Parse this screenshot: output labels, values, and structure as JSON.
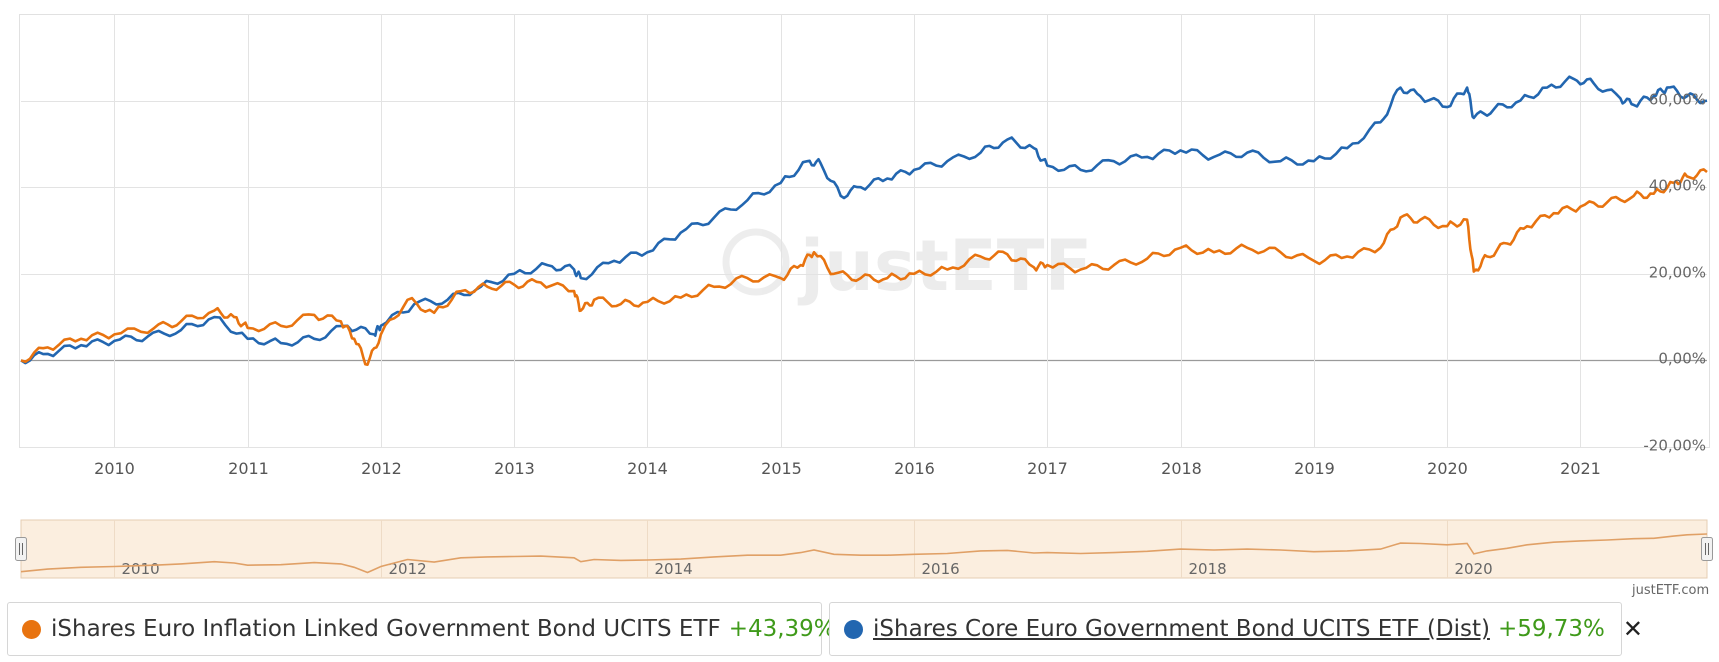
{
  "chart_data": {
    "type": "line",
    "watermark": "justETF",
    "credit": "justETF.com",
    "x_range": [
      2009.3,
      2021.95
    ],
    "ylim": [
      -20,
      80
    ],
    "y_ticks": [
      {
        "value": 60,
        "label": "60,00%"
      },
      {
        "value": 40,
        "label": "40,00%"
      },
      {
        "value": 20,
        "label": "20,00%"
      },
      {
        "value": 0,
        "label": "0,00%"
      },
      {
        "value": -20,
        "label": "-20,00%"
      }
    ],
    "x_ticks": [
      {
        "value": 2010,
        "label": "2010"
      },
      {
        "value": 2011,
        "label": "2011"
      },
      {
        "value": 2012,
        "label": "2012"
      },
      {
        "value": 2013,
        "label": "2013"
      },
      {
        "value": 2014,
        "label": "2014"
      },
      {
        "value": 2015,
        "label": "2015"
      },
      {
        "value": 2016,
        "label": "2016"
      },
      {
        "value": 2017,
        "label": "2017"
      },
      {
        "value": 2018,
        "label": "2018"
      },
      {
        "value": 2019,
        "label": "2019"
      },
      {
        "value": 2020,
        "label": "2020"
      },
      {
        "value": 2021,
        "label": "2021"
      }
    ],
    "navigator_ticks": [
      {
        "value": 2010,
        "label": "2010"
      },
      {
        "value": 2012,
        "label": "2012"
      },
      {
        "value": 2014,
        "label": "2014"
      },
      {
        "value": 2016,
        "label": "2016"
      },
      {
        "value": 2018,
        "label": "2018"
      },
      {
        "value": 2020,
        "label": "2020"
      }
    ],
    "series": [
      {
        "name": "iShares Euro Inflation Linked Government Bond UCITS ETF",
        "performance": "+43,39%",
        "color": "#e8730f",
        "points": [
          [
            2009.3,
            0
          ],
          [
            2009.5,
            3
          ],
          [
            2009.75,
            5
          ],
          [
            2010.0,
            6
          ],
          [
            2010.3,
            7.5
          ],
          [
            2010.5,
            9
          ],
          [
            2010.75,
            11.5
          ],
          [
            2010.9,
            10
          ],
          [
            2011.0,
            7.5
          ],
          [
            2011.25,
            8
          ],
          [
            2011.5,
            10.5
          ],
          [
            2011.7,
            9
          ],
          [
            2011.8,
            5
          ],
          [
            2011.9,
            -1
          ],
          [
            2012.0,
            6
          ],
          [
            2012.2,
            14
          ],
          [
            2012.4,
            11
          ],
          [
            2012.6,
            16
          ],
          [
            2012.8,
            17
          ],
          [
            2013.0,
            17.5
          ],
          [
            2013.2,
            18
          ],
          [
            2013.45,
            16
          ],
          [
            2013.5,
            11.5
          ],
          [
            2013.6,
            14
          ],
          [
            2013.8,
            13
          ],
          [
            2014.0,
            13.5
          ],
          [
            2014.25,
            14.5
          ],
          [
            2014.5,
            17
          ],
          [
            2014.75,
            19
          ],
          [
            2015.0,
            19
          ],
          [
            2015.15,
            22
          ],
          [
            2015.25,
            25
          ],
          [
            2015.4,
            20
          ],
          [
            2015.6,
            19
          ],
          [
            2015.8,
            19
          ],
          [
            2016.0,
            20
          ],
          [
            2016.25,
            21
          ],
          [
            2016.5,
            24
          ],
          [
            2016.7,
            24.5
          ],
          [
            2016.9,
            21.5
          ],
          [
            2017.0,
            22
          ],
          [
            2017.25,
            21
          ],
          [
            2017.5,
            22
          ],
          [
            2017.75,
            23.5
          ],
          [
            2018.0,
            26
          ],
          [
            2018.25,
            25
          ],
          [
            2018.5,
            26
          ],
          [
            2018.75,
            25
          ],
          [
            2019.0,
            23
          ],
          [
            2019.25,
            24
          ],
          [
            2019.5,
            26
          ],
          [
            2019.65,
            33
          ],
          [
            2019.8,
            32.5
          ],
          [
            2020.0,
            31
          ],
          [
            2020.15,
            32.5
          ],
          [
            2020.2,
            20.5
          ],
          [
            2020.3,
            24
          ],
          [
            2020.45,
            27
          ],
          [
            2020.6,
            31
          ],
          [
            2020.8,
            34
          ],
          [
            2021.0,
            35.5
          ],
          [
            2021.2,
            36.5
          ],
          [
            2021.4,
            38
          ],
          [
            2021.55,
            38.5
          ],
          [
            2021.7,
            41
          ],
          [
            2021.8,
            42.5
          ],
          [
            2021.95,
            43.5
          ]
        ]
      },
      {
        "name": "iShares Core Euro Government Bond UCITS ETF (Dist)",
        "performance": "+59,73%",
        "color": "#2266b0",
        "points": [
          [
            2009.3,
            0
          ],
          [
            2009.5,
            1.5
          ],
          [
            2009.75,
            3.5
          ],
          [
            2010.0,
            4.5
          ],
          [
            2010.25,
            5.5
          ],
          [
            2010.5,
            7
          ],
          [
            2010.75,
            10
          ],
          [
            2011.0,
            5
          ],
          [
            2011.25,
            4
          ],
          [
            2011.5,
            5
          ],
          [
            2011.75,
            8
          ],
          [
            2011.95,
            6
          ],
          [
            2012.0,
            8
          ],
          [
            2012.25,
            13
          ],
          [
            2012.5,
            14
          ],
          [
            2012.75,
            17
          ],
          [
            2013.0,
            20
          ],
          [
            2013.25,
            22
          ],
          [
            2013.45,
            21
          ],
          [
            2013.5,
            19
          ],
          [
            2013.75,
            23
          ],
          [
            2014.0,
            25
          ],
          [
            2014.25,
            29.5
          ],
          [
            2014.5,
            33
          ],
          [
            2014.75,
            37
          ],
          [
            2015.0,
            41
          ],
          [
            2015.2,
            46
          ],
          [
            2015.3,
            45.5
          ],
          [
            2015.45,
            38
          ],
          [
            2015.6,
            40
          ],
          [
            2015.8,
            42
          ],
          [
            2016.0,
            44
          ],
          [
            2016.25,
            46
          ],
          [
            2016.5,
            48
          ],
          [
            2016.7,
            51
          ],
          [
            2016.9,
            49
          ],
          [
            2017.0,
            45
          ],
          [
            2017.25,
            44
          ],
          [
            2017.5,
            46
          ],
          [
            2017.75,
            47
          ],
          [
            2018.0,
            48.5
          ],
          [
            2018.25,
            47
          ],
          [
            2018.5,
            48
          ],
          [
            2018.75,
            46
          ],
          [
            2019.0,
            46
          ],
          [
            2019.25,
            49
          ],
          [
            2019.5,
            55
          ],
          [
            2019.65,
            63
          ],
          [
            2019.8,
            61
          ],
          [
            2020.0,
            58.5
          ],
          [
            2020.15,
            63
          ],
          [
            2020.2,
            56
          ],
          [
            2020.35,
            58
          ],
          [
            2020.55,
            60
          ],
          [
            2020.75,
            63
          ],
          [
            2020.95,
            65
          ],
          [
            2021.1,
            64
          ],
          [
            2021.3,
            60.5
          ],
          [
            2021.4,
            59
          ],
          [
            2021.55,
            61
          ],
          [
            2021.65,
            63
          ],
          [
            2021.8,
            61
          ],
          [
            2021.95,
            60
          ]
        ]
      }
    ]
  },
  "legend": [
    {
      "name": "iShares Euro Inflation Linked Government Bond UCITS ETF",
      "performance": "+43,39%",
      "color": "#e8730f"
    },
    {
      "name": "iShares Core Euro Government Bond UCITS ETF (Dist)",
      "performance": "+59,73%",
      "color": "#2266b0",
      "close": "✕"
    }
  ]
}
